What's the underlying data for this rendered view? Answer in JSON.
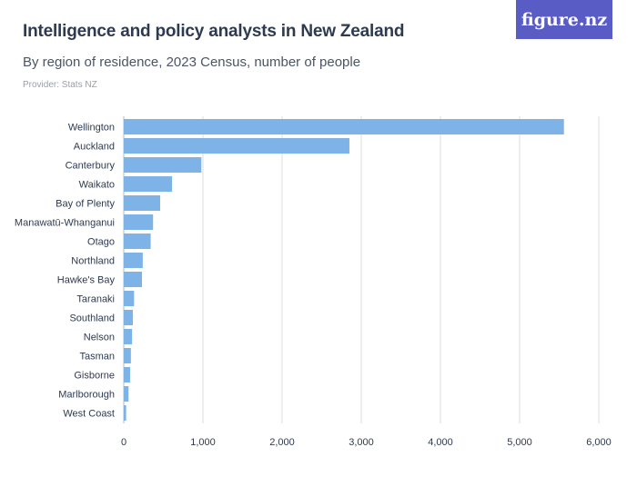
{
  "header": {
    "title": "Intelligence and policy analysts in New Zealand",
    "subtitle": "By region of residence, 2023 Census, number of people",
    "provider": "Provider: Stats NZ",
    "logo_text": "figure.nz"
  },
  "colors": {
    "bar": "#7db3e6",
    "grid": "#dcdcdc",
    "logo_bg": "#5a5cc5"
  },
  "chart_data": {
    "type": "bar",
    "orientation": "horizontal",
    "title": "Intelligence and policy analysts in New Zealand",
    "subtitle": "By region of residence, 2023 Census, number of people",
    "categories": [
      "Wellington",
      "Auckland",
      "Canterbury",
      "Waikato",
      "Bay of Plenty",
      "Manawatū-Whanganui",
      "Otago",
      "Northland",
      "Hawke's Bay",
      "Taranaki",
      "Southland",
      "Nelson",
      "Tasman",
      "Gisborne",
      "Marlborough",
      "West Coast"
    ],
    "values": [
      5560,
      2850,
      980,
      610,
      460,
      370,
      340,
      240,
      230,
      130,
      115,
      105,
      90,
      80,
      60,
      30
    ],
    "xlim": [
      0,
      6000
    ],
    "xticks": [
      0,
      1000,
      2000,
      3000,
      4000,
      5000,
      6000
    ],
    "xtick_labels": [
      "0",
      "1,000",
      "2,000",
      "3,000",
      "4,000",
      "5,000",
      "6,000"
    ],
    "grid": true,
    "xlabel": "",
    "ylabel": ""
  }
}
